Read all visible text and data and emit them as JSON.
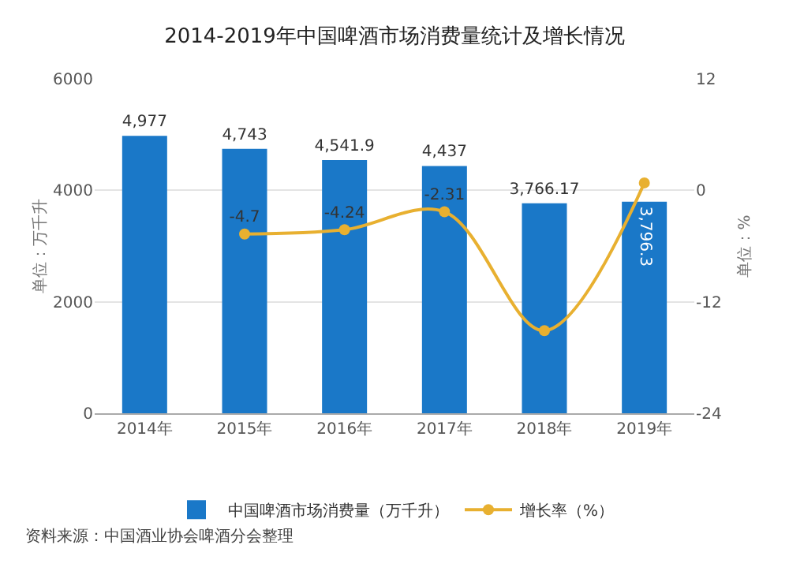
{
  "chart_data": {
    "type": "bar",
    "title": "2014-2019年中国啤酒市场消费量统计及增长情况",
    "ylabel": "单位：万千升",
    "y2label": "单位：%",
    "categories": [
      "2014年",
      "2015年",
      "2016年",
      "2017年",
      "2018年",
      "2019年"
    ],
    "series": [
      {
        "name": "中国啤酒市场消费量（万千升）",
        "color": "#1a78c8",
        "values": [
          4977,
          4743,
          4541.9,
          4437,
          3766.17,
          3796.3
        ],
        "value_labels": [
          "4,977",
          "4,743",
          "4,541.9",
          "4,437",
          "3,766.17",
          "3,796.3"
        ]
      },
      {
        "name": "增长率（%）",
        "type": "line",
        "axis": "y2",
        "color": "#e8b030",
        "values": [
          null,
          -4.7,
          -4.24,
          -2.31,
          -15.1,
          0.8
        ],
        "value_labels": [
          null,
          "-4.7",
          "-4.24",
          "-2.31",
          null,
          null
        ]
      }
    ],
    "ylim": [
      0,
      6000
    ],
    "yticks": [
      0,
      2000,
      4000,
      6000
    ],
    "y2lim": [
      -24,
      12
    ],
    "y2ticks": [
      -24,
      -12,
      0,
      12
    ],
    "grid": "y",
    "legend": "bottom",
    "marker": "circle",
    "line_style": "solid",
    "annotations": [
      "资料来源：中国酒业协会啤酒分会整理"
    ]
  }
}
